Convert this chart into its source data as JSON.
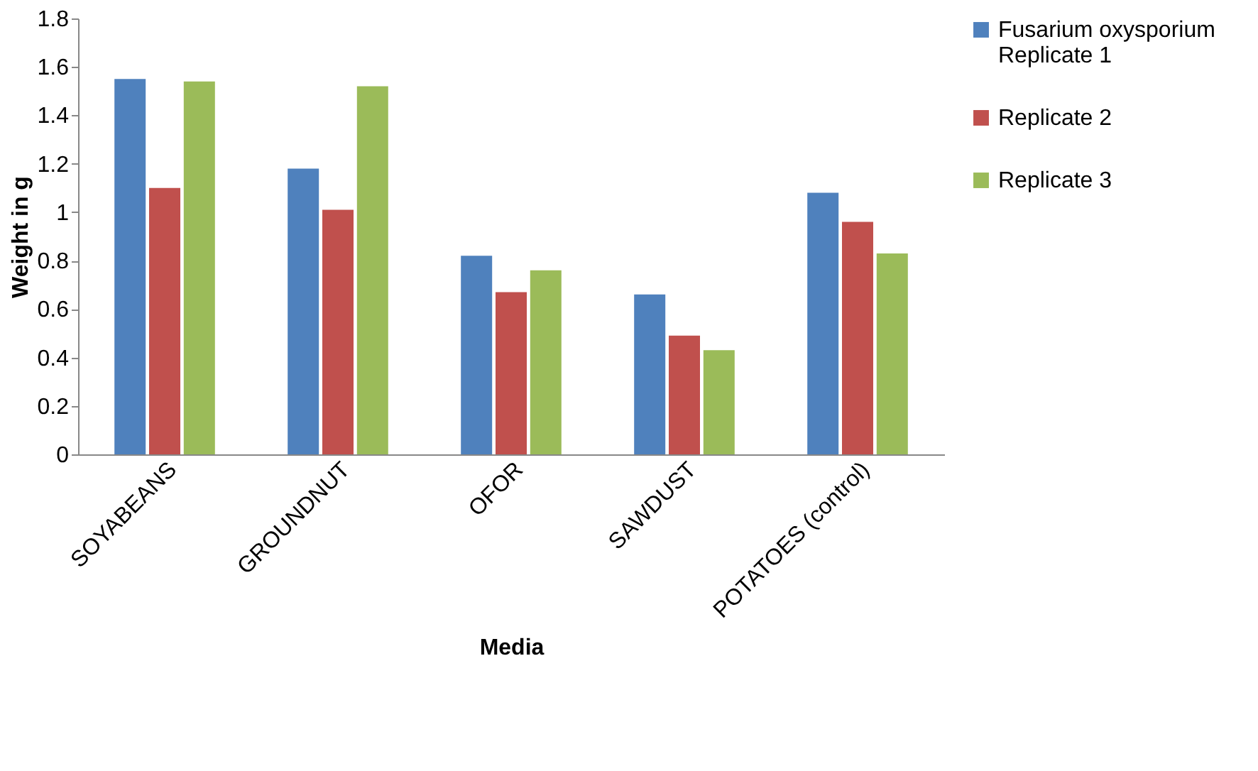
{
  "chart_data": {
    "type": "bar",
    "xlabel": "Media",
    "ylabel": "Weight in g",
    "categories": [
      "SOYABEANS",
      "GROUNDNUT",
      "OFOR",
      "SAWDUST",
      "POTATOES (control)"
    ],
    "series": [
      {
        "name": "Fusarium oxysporium Replicate 1",
        "color": "#4f81bd",
        "values": [
          1.55,
          1.18,
          0.82,
          0.66,
          1.08
        ]
      },
      {
        "name": "Replicate 2",
        "color": "#c0504d",
        "values": [
          1.1,
          1.01,
          0.67,
          0.49,
          0.96
        ]
      },
      {
        "name": "Replicate 3",
        "color": "#9bbb59",
        "values": [
          1.54,
          1.52,
          0.76,
          0.43,
          0.83
        ]
      }
    ],
    "ylim": [
      0,
      1.8
    ],
    "yticks": [
      0,
      0.2,
      0.4,
      0.6,
      0.8,
      1,
      1.2,
      1.4,
      1.6,
      1.8
    ],
    "grid": false,
    "legend": "right"
  }
}
